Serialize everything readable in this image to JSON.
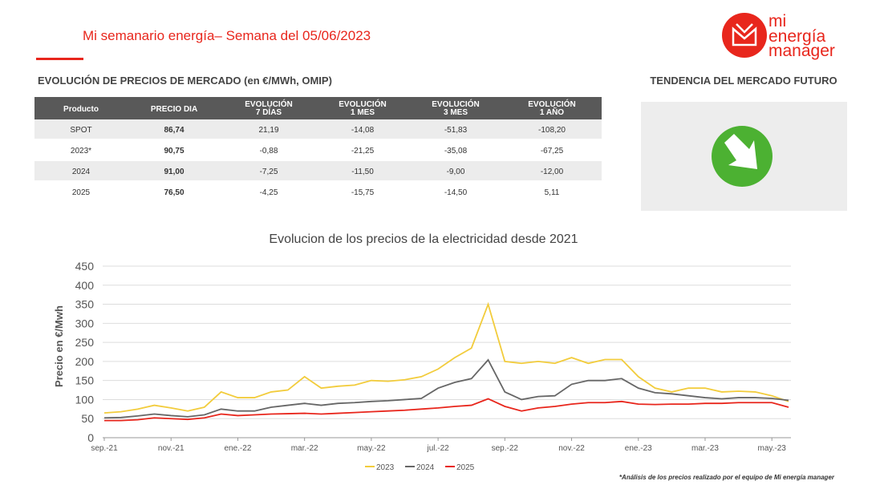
{
  "header": {
    "title": "Mi semanario energía– Semana del 05/06/2023",
    "logo": [
      "mi",
      "energía",
      "manager"
    ]
  },
  "table": {
    "title": "EVOLUCIÓN DE PRECIOS DE MERCADO (en €/MWh, OMIP)",
    "columns": [
      [
        "Producto"
      ],
      [
        "PRECIO DIA"
      ],
      [
        "EVOLUCIÓN",
        "7 DÍAS"
      ],
      [
        "EVOLUCIÓN",
        "1 MES"
      ],
      [
        "EVOLUCIÓN",
        "3 MES"
      ],
      [
        "EVOLUCIÓN",
        "1 AÑO"
      ]
    ],
    "rows": [
      [
        "SPOT",
        "86,74",
        "21,19",
        "-14,08",
        "-51,83",
        "-108,20"
      ],
      [
        "2023*",
        "90,75",
        "-0,88",
        "-21,25",
        "-35,08",
        "-67,25"
      ],
      [
        "2024",
        "91,00",
        "-7,25",
        "-11,50",
        "-9,00",
        "-12,00"
      ],
      [
        "2025",
        "76,50",
        "-4,25",
        "-15,75",
        "-14,50",
        "5,11"
      ]
    ]
  },
  "trend": {
    "title": "TENDENCIA DEL MERCADO FUTURO"
  },
  "chart_data": {
    "type": "line",
    "title": "Evolucion de los precios de la electricidad desde 2021",
    "y_label": "Precio en €/Mwh",
    "categories": [
      "sep.-21",
      null,
      null,
      null,
      "nov.-21",
      null,
      null,
      null,
      "ene.-22",
      null,
      null,
      null,
      "mar.-22",
      null,
      null,
      null,
      "may.-22",
      null,
      null,
      null,
      "jul.-22",
      null,
      null,
      null,
      "sep.-22",
      null,
      null,
      null,
      "nov.-22",
      null,
      null,
      null,
      "ene.-23",
      null,
      null,
      null,
      "mar.-23",
      null,
      null,
      null,
      "may.-23",
      null
    ],
    "series": [
      {
        "name": "2023",
        "color": "#f2cc3c",
        "values": [
          65,
          68,
          75,
          85,
          78,
          70,
          80,
          120,
          105,
          105,
          120,
          125,
          160,
          130,
          135,
          138,
          150,
          148,
          152,
          160,
          180,
          210,
          235,
          350,
          200,
          195,
          200,
          195,
          210,
          195,
          205,
          205,
          160,
          130,
          120,
          130,
          130,
          120,
          122,
          120,
          110,
          95
        ]
      },
      {
        "name": "2024",
        "color": "#666666",
        "values": [
          52,
          53,
          57,
          62,
          58,
          55,
          60,
          75,
          70,
          70,
          80,
          85,
          90,
          85,
          90,
          92,
          95,
          97,
          100,
          103,
          130,
          145,
          155,
          204,
          120,
          100,
          108,
          110,
          140,
          150,
          150,
          155,
          130,
          118,
          115,
          110,
          105,
          102,
          105,
          105,
          103,
          98
        ]
      },
      {
        "name": "2025",
        "color": "#e8261c",
        "values": [
          45,
          45,
          47,
          52,
          50,
          48,
          52,
          62,
          58,
          60,
          62,
          63,
          64,
          62,
          64,
          66,
          68,
          70,
          72,
          75,
          78,
          82,
          85,
          102,
          82,
          70,
          78,
          82,
          88,
          92,
          92,
          95,
          88,
          87,
          88,
          88,
          90,
          90,
          92,
          92,
          92,
          80
        ]
      }
    ],
    "ylim": [
      0,
      450
    ],
    "yticks": [
      0,
      50,
      100,
      150,
      200,
      250,
      300,
      350,
      400,
      450
    ],
    "grid": true,
    "legend": "bottom"
  },
  "footnote": "*Análisis de los precios realizado por el equipo de Mi energía manager"
}
